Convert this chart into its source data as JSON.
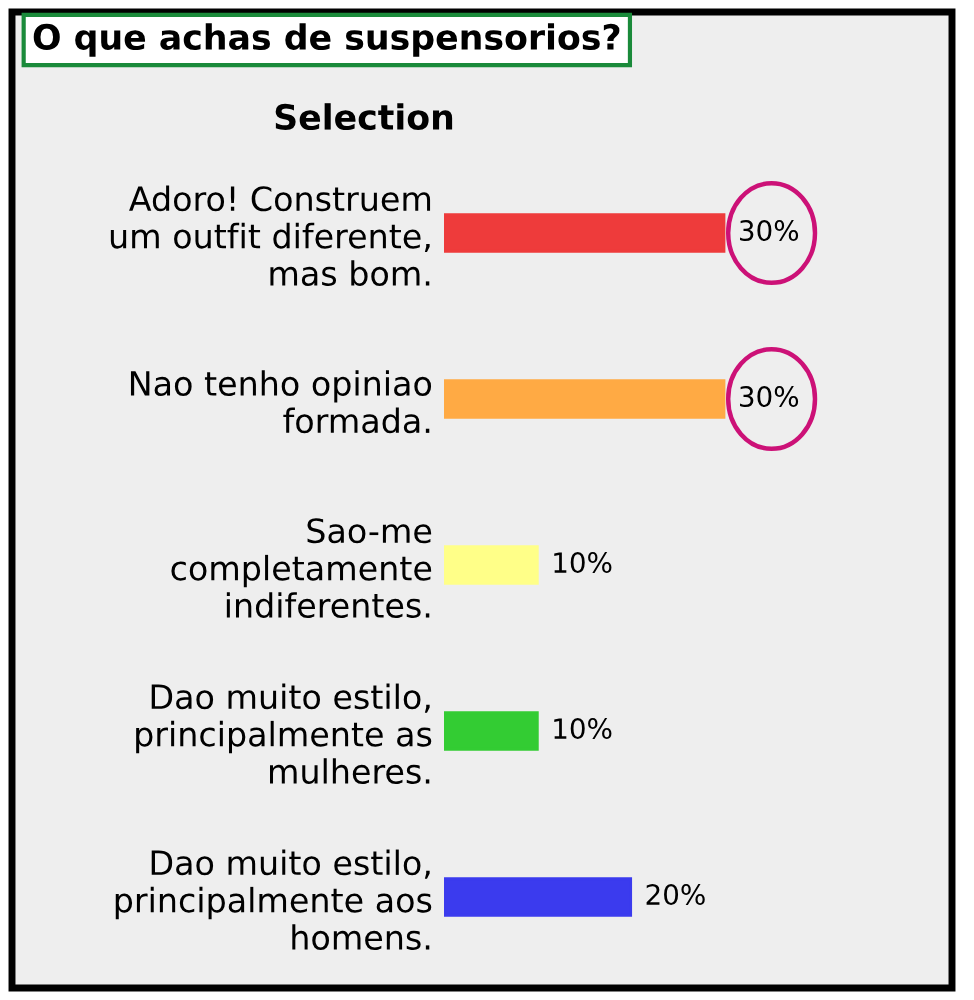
{
  "chart_data": {
    "type": "bar",
    "orientation": "horizontal",
    "title": "O que achas de suspensorios?",
    "annotations": [
      "Selection"
    ],
    "categories": [
      "Adoro! Construem\num outfit diferente,\nmas bom.",
      "Nao tenho opiniao\nformada.",
      "Sao-me\ncompletamente\nindiferentes.",
      "Dao muito estilo,\nprincipalmente as\nmulheres.",
      "Dao muito estilo,\nprincipalmente aos\nhomens."
    ],
    "values": [
      30,
      30,
      10,
      10,
      20
    ],
    "colors": [
      "#ee3b3b",
      "#ffaa44",
      "#ffff88",
      "#33cc33",
      "#3b3bee"
    ],
    "value_labels": [
      "30%",
      "30%",
      "10%",
      "10%",
      "20%"
    ]
  }
}
